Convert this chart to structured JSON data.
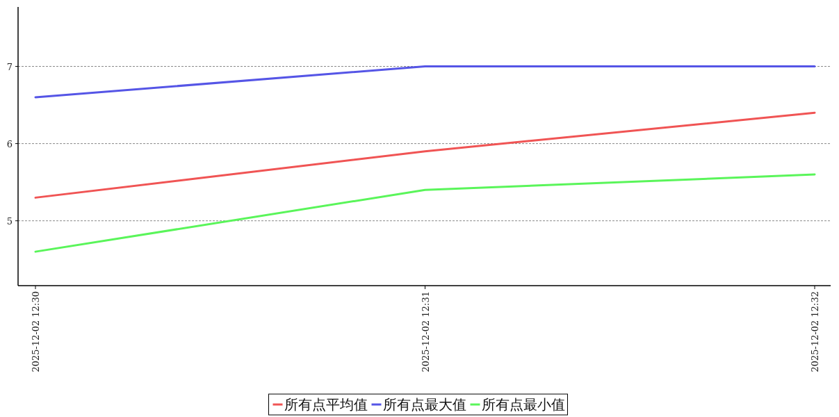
{
  "chart_data": {
    "type": "line",
    "categories": [
      "2025-12-02 12:30",
      "2025-12-02 12:31",
      "2025-12-02 12:32"
    ],
    "series": [
      {
        "name": "所有点平均值",
        "color": "#f05454",
        "values": [
          5.3,
          5.9,
          6.4
        ]
      },
      {
        "name": "所有点最大值",
        "color": "#5555e6",
        "values": [
          6.6,
          7,
          7
        ]
      },
      {
        "name": "所有点最小值",
        "color": "#5af55a",
        "values": [
          4.6,
          5.4,
          5.6
        ]
      }
    ],
    "ylim": [
      4.16,
      7.77
    ],
    "yticks": [
      5,
      6,
      7
    ],
    "grid": "y",
    "legend": "bottom"
  }
}
